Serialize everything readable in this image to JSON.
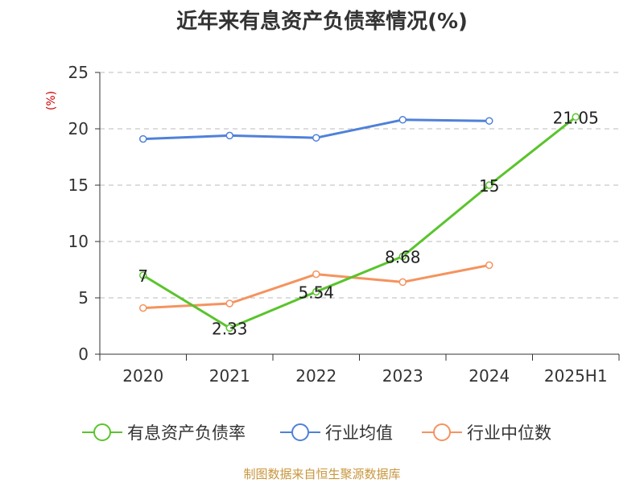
{
  "title": "近年来有息资产负债率情况(%)",
  "source": "制图数据来自恒生聚源数据库",
  "chart_data": {
    "type": "line",
    "title": "近年来有息资产负债率情况(%)",
    "ylabel": "(%)",
    "ylim": [
      0,
      25
    ],
    "yticks": [
      0,
      5,
      10,
      15,
      20,
      25
    ],
    "categories": [
      "2020",
      "2021",
      "2022",
      "2023",
      "2024",
      "2025H1"
    ],
    "grid": true,
    "legend_position": "bottom",
    "series": [
      {
        "name": "有息资产负债率",
        "color": "#5ac42c",
        "values": [
          7,
          2.33,
          5.54,
          8.68,
          15,
          21.05
        ],
        "labels": [
          "7",
          "2.33",
          "5.54",
          "8.68",
          "15",
          "21.05"
        ]
      },
      {
        "name": "行业均值",
        "color": "#4f81d9",
        "values": [
          19.1,
          19.4,
          19.2,
          20.8,
          20.7,
          null
        ]
      },
      {
        "name": "行业中位数",
        "color": "#f5935e",
        "values": [
          4.1,
          4.5,
          7.1,
          6.4,
          7.9,
          null
        ]
      }
    ]
  }
}
